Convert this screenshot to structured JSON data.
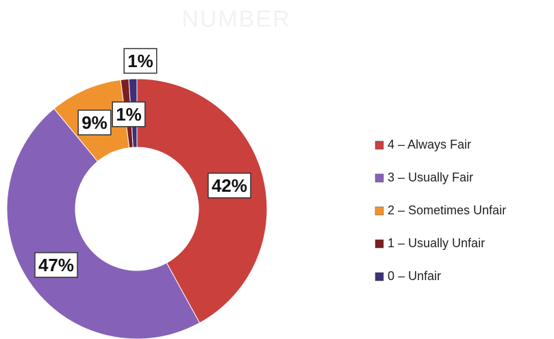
{
  "chart_data": {
    "type": "donut",
    "title": "NUMBER",
    "categories": [
      "4 – Always Fair",
      "3 – Usually Fair",
      "2 – Sometimes Unfair",
      "1 – Usually Unfair",
      "0 – Unfair"
    ],
    "values": [
      42,
      47,
      9,
      1,
      1
    ],
    "value_labels": [
      "42%",
      "47%",
      "9%",
      "1%",
      "1%"
    ],
    "colors": [
      "#c9403d",
      "#8562b8",
      "#f0932f",
      "#7a1f1f",
      "#3d2f78"
    ],
    "legend": "right"
  }
}
